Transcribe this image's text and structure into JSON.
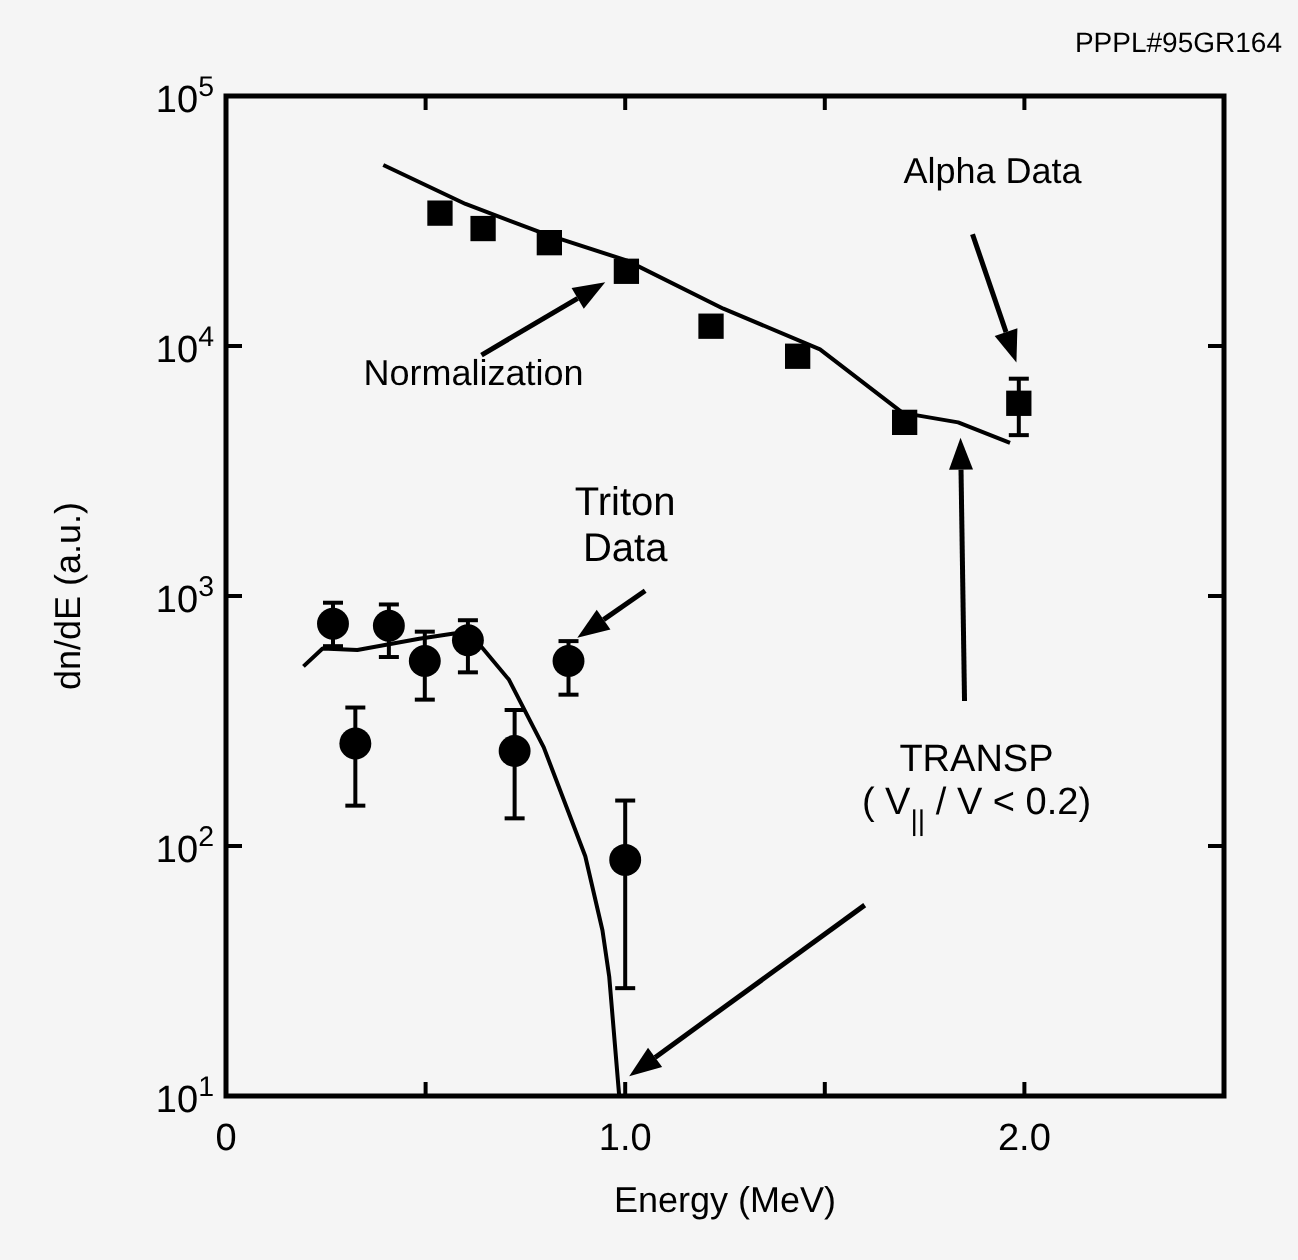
{
  "chart_data": {
    "type": "scatter",
    "xlabel": "Energy (MeV)",
    "ylabel": "dn/dE (a.u.)",
    "log": "y",
    "xlim": [
      0,
      2.5
    ],
    "xticks": [
      0,
      {
        "value": 0.5,
        "label": null
      },
      {
        "value": 1,
        "label": "1.0"
      },
      {
        "value": 1.5,
        "label": null
      },
      {
        "value": 2,
        "label": "2.0"
      },
      {
        "value": 2.5,
        "label": null
      }
    ],
    "ylim": [
      10,
      100000
    ],
    "yticks": [
      {
        "value": 10,
        "label": "10$^{1}$"
      },
      {
        "value": 100,
        "label": "10$^{2}$"
      },
      {
        "value": 1000,
        "label": "10$^{3}$"
      },
      {
        "value": 10000,
        "label": "10$^{4}$"
      },
      {
        "value": 100000,
        "label": "10$^{5}$"
      }
    ],
    "grid": false,
    "series": [
      {
        "type": "line",
        "color": "#000000",
        "marker": "none",
        "line_style": "solid",
        "x": [
          0.394,
          0.6,
          0.8,
          1.003,
          1.246,
          1.488,
          1.695,
          1.834,
          1.964
        ],
        "values": [
          53000,
          37000,
          28000,
          22000,
          14100,
          9700,
          5400,
          4950,
          4100
        ]
      },
      {
        "color": "#000000",
        "marker": "square",
        "x": [
          0.536,
          0.644,
          0.81,
          1.003,
          1.215,
          1.432,
          1.7,
          1.986
        ],
        "values": [
          34000,
          29500,
          25900,
          19900,
          12000,
          9100,
          4950,
          5900
        ],
        "errors": [
          null,
          null,
          null,
          null,
          null,
          null,
          null,
          [
            4400,
            7400
          ]
        ]
      },
      {
        "type": "line",
        "color": "#000000",
        "marker": "none",
        "line_style": "solid",
        "x": [
          0.194,
          0.242,
          0.329,
          0.484,
          0.571,
          0.623,
          0.709,
          0.796,
          0.9,
          0.943,
          0.96,
          0.985
        ],
        "values": [
          523,
          617,
          608,
          675,
          708,
          675,
          462,
          248,
          91,
          46,
          30,
          10
        ]
      },
      {
        "color": "#000000",
        "marker": "circle",
        "x": [
          0.268,
          0.324,
          0.408,
          0.498,
          0.606,
          0.723,
          0.858,
          1.0
        ],
        "values": [
          775,
          257,
          760,
          550,
          665,
          240,
          550,
          88
        ],
        "errors": [
          [
            630,
            940
          ],
          [
            145,
            358
          ],
          [
            570,
            925
          ],
          [
            385,
            720
          ],
          [
            495,
            800
          ],
          [
            129,
            350
          ],
          [
            403,
            660
          ],
          [
            27,
            152
          ]
        ]
      }
    ],
    "annotations": [
      "PPPL#95GR164",
      "Alpha Data",
      "Normalization",
      "Triton\nData",
      "TRANSP\n( V$_{||}$ / V < 0.2)"
    ]
  }
}
